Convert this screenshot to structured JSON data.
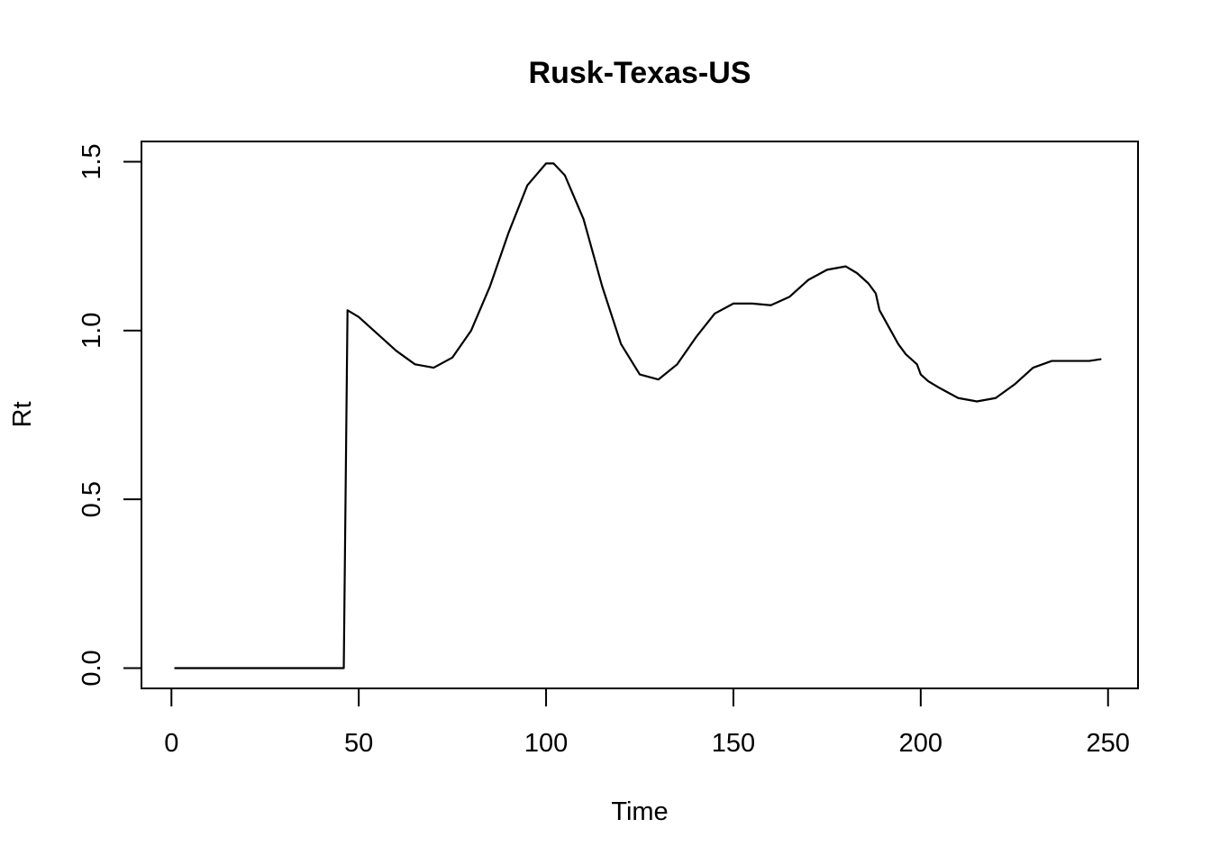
{
  "chart_data": {
    "type": "line",
    "title": "Rusk-Texas-US",
    "xlabel": "Time",
    "ylabel": "Rt",
    "xlim": [
      -8,
      258
    ],
    "ylim": [
      -0.06,
      1.56
    ],
    "xticks": [
      0,
      50,
      100,
      150,
      200,
      250
    ],
    "xtick_labels": [
      "0",
      "50",
      "100",
      "150",
      "200",
      "250"
    ],
    "yticks": [
      0.0,
      0.5,
      1.0,
      1.5
    ],
    "ytick_labels": [
      "0.0",
      "0.5",
      "1.0",
      "1.5"
    ],
    "grid": false,
    "legend": "none",
    "series": [
      {
        "color": "#000000",
        "x": [
          1,
          46,
          47,
          50,
          55,
          60,
          65,
          70,
          75,
          80,
          85,
          90,
          95,
          100,
          102,
          105,
          110,
          115,
          120,
          125,
          130,
          135,
          140,
          145,
          150,
          155,
          160,
          165,
          170,
          175,
          180,
          183,
          186,
          188,
          189,
          190,
          192,
          194,
          196,
          198,
          199,
          200,
          202,
          205,
          210,
          215,
          220,
          225,
          230,
          235,
          240,
          245,
          248
        ],
        "y": [
          0.0,
          0.0,
          1.06,
          1.04,
          0.99,
          0.94,
          0.9,
          0.89,
          0.92,
          1.0,
          1.13,
          1.29,
          1.43,
          1.495,
          1.495,
          1.46,
          1.33,
          1.13,
          0.96,
          0.87,
          0.855,
          0.9,
          0.98,
          1.05,
          1.08,
          1.08,
          1.075,
          1.1,
          1.15,
          1.18,
          1.19,
          1.17,
          1.14,
          1.11,
          1.06,
          1.04,
          1.0,
          0.96,
          0.93,
          0.91,
          0.9,
          0.87,
          0.85,
          0.83,
          0.8,
          0.79,
          0.8,
          0.84,
          0.89,
          0.91,
          0.91,
          0.91,
          0.915
        ]
      }
    ]
  }
}
